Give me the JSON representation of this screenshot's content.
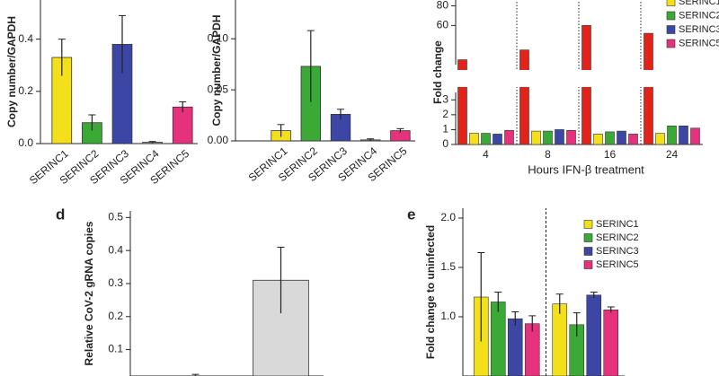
{
  "chart_data": [
    {
      "type": "bar",
      "ylabel": "Copy number/GAPDH",
      "categories": [
        "SERINC1",
        "SERINC2",
        "SERINC3",
        "SERINC4",
        "SERINC5"
      ],
      "values": [
        0.33,
        0.08,
        0.38,
        0.005,
        0.14
      ],
      "errors": [
        0.07,
        0.03,
        0.11,
        0.003,
        0.02
      ],
      "colors": [
        "#f4e01a",
        "#3aa935",
        "#3b46a5",
        "#9a9a9a",
        "#e6317d"
      ],
      "ylim": [
        0,
        0.55
      ],
      "yticks": [
        {
          "value": 0,
          "label": "0.0"
        },
        0.2,
        0.4
      ]
    },
    {
      "type": "bar",
      "ylabel": "Copy number/GAPDH",
      "categories": [
        "SERINC1",
        "SERINC2",
        "SERINC3",
        "SERINC4",
        "SERINC5"
      ],
      "values": [
        0.01,
        0.073,
        0.026,
        0.001,
        0.01
      ],
      "errors": [
        0.006,
        0.035,
        0.005,
        0.001,
        0.002
      ],
      "colors": [
        "#f4e01a",
        "#3aa935",
        "#3b46a5",
        "#9a9a9a",
        "#e6317d"
      ],
      "ylim": [
        0,
        0.138
      ],
      "yticks": [
        {
          "value": 0,
          "label": "0.00"
        },
        0.05,
        {
          "value": 0.1,
          "label": "0.10"
        }
      ]
    },
    {
      "type": "grouped_bar",
      "ylabel": "Fold change",
      "xlabel": "Hours IFN-β treatment",
      "categories": [
        "4",
        "8",
        "16",
        "24"
      ],
      "series": [
        {
          "color": "#e2231a",
          "values": [
            25,
            35,
            60,
            52
          ]
        },
        {
          "name": "SERINC1",
          "color": "#f4e01a",
          "values": [
            0.75,
            0.9,
            0.7,
            0.75
          ]
        },
        {
          "name": "SERINC2",
          "color": "#3aa935",
          "values": [
            0.75,
            0.9,
            0.85,
            1.25
          ]
        },
        {
          "name": "SERINC3",
          "color": "#3b46a5",
          "values": [
            0.7,
            1.0,
            0.9,
            1.25
          ]
        },
        {
          "name": "SERINC5",
          "color": "#e6317d",
          "values": [
            0.95,
            0.95,
            0.7,
            1.1
          ]
        }
      ],
      "ylim": [
        0,
        86
      ],
      "axis_break": [
        3.5,
        20
      ],
      "yticks": [
        0,
        1,
        2,
        3,
        60,
        80
      ],
      "group_separators": "dotted"
    },
    {
      "type": "bar",
      "panel": "d",
      "ylabel": "Relative CoV-2 gRNA copies",
      "categories": [
        null,
        null
      ],
      "values": [
        0.02,
        0.31
      ],
      "errors": [
        0.005,
        0.1
      ],
      "colors": [
        "#ffffff",
        "#d9d9d9"
      ],
      "ylim": [
        0.02,
        0.52
      ],
      "yticks": [
        0.1,
        0.2,
        0.3,
        0.4,
        0.5
      ]
    },
    {
      "type": "grouped_bar",
      "panel": "e",
      "ylabel": "Fold change to uninfected",
      "categories": [
        null,
        null
      ],
      "series": [
        {
          "name": "SERINC1",
          "color": "#f4e01a",
          "values": [
            1.2,
            1.13
          ],
          "errors": [
            0.45,
            0.1
          ]
        },
        {
          "name": "SERINC2",
          "color": "#3aa935",
          "values": [
            1.15,
            0.92
          ],
          "errors": [
            0.1,
            0.12
          ]
        },
        {
          "name": "SERINC3",
          "color": "#3b46a5",
          "values": [
            0.98,
            1.22
          ],
          "errors": [
            0.07,
            0.03
          ]
        },
        {
          "name": "SERINC5",
          "color": "#e6317d",
          "values": [
            0.93,
            1.07
          ],
          "errors": [
            0.08,
            0.03
          ]
        }
      ],
      "ylim": [
        0.4,
        2.1
      ],
      "yticks": [
        {
          "value": 1,
          "label": "1.0"
        },
        1.5,
        {
          "value": 2,
          "label": "2.0"
        }
      ],
      "group_separators": "dashed"
    }
  ]
}
